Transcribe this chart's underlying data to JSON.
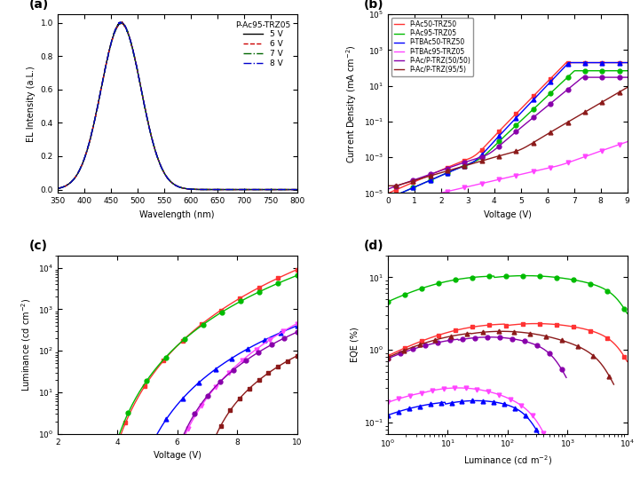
{
  "panel_a": {
    "title": "(a)",
    "xlabel": "Wavelength (nm)",
    "ylabel": "EL Intensity (a.L.)",
    "legend_title": "P-Ac95-TRZ05",
    "xlim": [
      350,
      800
    ],
    "ylim": [
      -0.02,
      1.05
    ],
    "xticks": [
      350,
      400,
      450,
      500,
      550,
      600,
      650,
      700,
      750,
      800
    ],
    "yticks": [
      0.0,
      0.2,
      0.4,
      0.6,
      0.8,
      1.0
    ],
    "peak": 470,
    "sigma": 38,
    "lines": [
      {
        "label": "5 V",
        "color": "#000000",
        "ls": "-"
      },
      {
        "label": "6 V",
        "color": "#cc0000",
        "ls": "--"
      },
      {
        "label": "7 V",
        "color": "#006600",
        "ls": "-."
      },
      {
        "label": "8 V",
        "color": "#0000cc",
        "ls": "-."
      }
    ]
  },
  "panel_b": {
    "title": "(b)",
    "xlabel": "Voltage (V)",
    "ylabel": "Current Density (mA cm$^{-2}$)",
    "xlim": [
      0,
      9
    ],
    "ylim": [
      1e-05,
      100000.0
    ],
    "xticks": [
      0,
      1,
      2,
      3,
      4,
      5,
      6,
      7,
      8,
      9
    ],
    "lines": [
      {
        "label": "P-Ac50-TRZ50",
        "color": "#ff3333",
        "marker": "s"
      },
      {
        "label": "P-Ac95-TRZ05",
        "color": "#00bb00",
        "marker": "o"
      },
      {
        "label": "P-TBAc50-TRZ50",
        "color": "#0000ff",
        "marker": "^"
      },
      {
        "label": "P-TBAc95-TRZ05",
        "color": "#ff44ff",
        "marker": "v"
      },
      {
        "label": "P-Ac/P-TRZ(50/50)",
        "color": "#8800aa",
        "marker": "o"
      },
      {
        "label": "P-Ac/P-TRZ(95/5)",
        "color": "#8b1a1a",
        "marker": "^"
      }
    ],
    "jv_params": [
      {
        "j_low": 2e-05,
        "v_knee1": 0.5,
        "v_knee2": 3.3,
        "j_max": 200,
        "n1": 1.5,
        "n2": 3.5
      },
      {
        "j_low": 1e-05,
        "v_knee1": 0.5,
        "v_knee2": 3.5,
        "j_max": 70,
        "n1": 1.5,
        "n2": 3.2
      },
      {
        "j_low": 1e-05,
        "v_knee1": 0.5,
        "v_knee2": 3.3,
        "j_max": 200,
        "n1": 1.5,
        "n2": 3.6
      },
      {
        "j_low": 1e-05,
        "v_knee1": 2.0,
        "v_knee2": 6.5,
        "j_max": 12,
        "n1": 0.8,
        "n2": 1.2
      },
      {
        "j_low": 3e-05,
        "v_knee1": 0.5,
        "v_knee2": 3.8,
        "j_max": 30,
        "n1": 1.2,
        "n2": 2.8
      },
      {
        "j_low": 5e-05,
        "v_knee1": 1.0,
        "v_knee2": 5.0,
        "j_max": 25,
        "n1": 1.0,
        "n2": 2.0
      }
    ]
  },
  "panel_c": {
    "title": "(c)",
    "xlabel": "Voltage (V)",
    "ylabel": "Luminance (cd cm$^{-2}$)",
    "xlim": [
      2,
      10
    ],
    "ylim": [
      1.0,
      20000.0
    ],
    "xticks": [
      2,
      4,
      6,
      8,
      10
    ],
    "lines": [
      {
        "label": "P-Ac50-TRZ50",
        "color": "#ff3333",
        "marker": "s"
      },
      {
        "label": "P-Ac95-TRZ05",
        "color": "#00bb00",
        "marker": "o"
      },
      {
        "label": "P-TBAc50-TRZ50",
        "color": "#0000ff",
        "marker": "^"
      },
      {
        "label": "P-TBAc95-TRZ05",
        "color": "#ff44ff",
        "marker": "v"
      },
      {
        "label": "P-Ac/P-TRZ(50/50)",
        "color": "#8800aa",
        "marker": "o"
      },
      {
        "label": "P-Ac/P-TRZ(95/5)",
        "color": "#8b1a1a",
        "marker": "s"
      }
    ],
    "lv_params": [
      {
        "v_th": 3.0,
        "lum_max": 9000,
        "n": 5.0,
        "v_start": 3.0
      },
      {
        "v_th": 3.1,
        "lum_max": 6500,
        "n": 4.5,
        "v_start": 3.1
      },
      {
        "v_th": 4.0,
        "lum_max": 400,
        "n": 4.0,
        "v_start": 4.0
      },
      {
        "v_th": 5.2,
        "lum_max": 450,
        "n": 4.5,
        "v_start": 5.0
      },
      {
        "v_th": 5.5,
        "lum_max": 280,
        "n": 3.5,
        "v_start": 5.3
      },
      {
        "v_th": 7.5,
        "lum_max": 75,
        "n": 3.0,
        "v_start": 6.5
      }
    ]
  },
  "panel_d": {
    "title": "(d)",
    "xlabel": "Luminance (cd m$^{-2}$)",
    "ylabel": "EQE (%)",
    "xlim": [
      1,
      10000
    ],
    "ylim": [
      0.07,
      20
    ],
    "lines": [
      {
        "label": "P-Ac50-TRZ50",
        "color": "#ff3333",
        "marker": "s"
      },
      {
        "label": "P-Ac95-TRZ05",
        "color": "#00bb00",
        "marker": "o"
      },
      {
        "label": "P-TBAc50-TRZ50",
        "color": "#0000ff",
        "marker": "^"
      },
      {
        "label": "P-TBAc95-TRZ05",
        "color": "#ff44ff",
        "marker": "v"
      },
      {
        "label": "P-Ac/P-TRZ(50/50)",
        "color": "#8800aa",
        "marker": "o"
      },
      {
        "label": "P-Ac/P-TRZ(95/5)",
        "color": "#8b1a1a",
        "marker": "^"
      }
    ],
    "eqe_params": [
      {
        "eqe_max": 2.3,
        "l_rise": 5,
        "l_peak": 300,
        "l_end": 9000,
        "decay": 0.25
      },
      {
        "eqe_max": 10.5,
        "l_rise": 3,
        "l_peak": 200,
        "l_end": 9000,
        "decay": 0.2
      },
      {
        "eqe_max": 0.2,
        "l_rise": 1,
        "l_peak": 30,
        "l_end": 300,
        "decay": 0.4
      },
      {
        "eqe_max": 0.3,
        "l_rise": 1,
        "l_peak": 15,
        "l_end": 400,
        "decay": 0.45
      },
      {
        "eqe_max": 1.5,
        "l_rise": 2,
        "l_peak": 50,
        "l_end": 800,
        "decay": 0.35
      },
      {
        "eqe_max": 1.8,
        "l_rise": 3,
        "l_peak": 80,
        "l_end": 5000,
        "decay": 0.28
      }
    ]
  },
  "background": "#ffffff"
}
